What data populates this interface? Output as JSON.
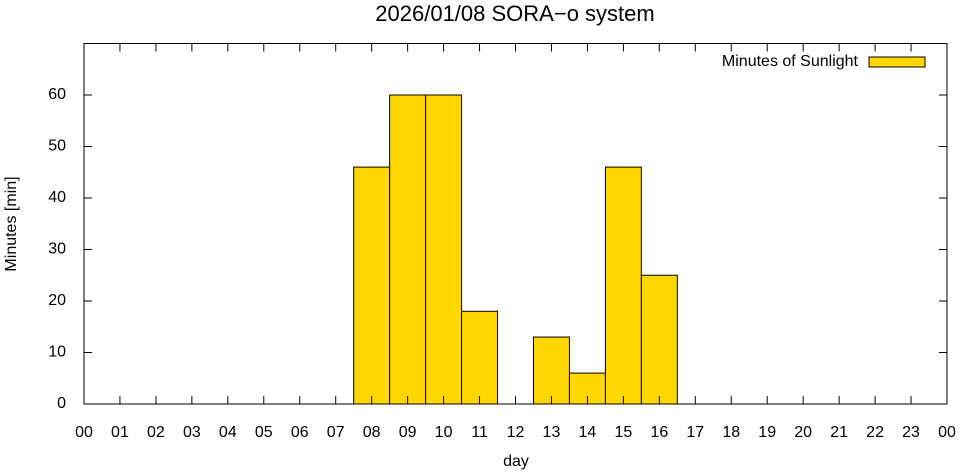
{
  "chart_data": {
    "type": "bar",
    "title": "2026/01/08 SORA−o system",
    "xlabel": "day",
    "ylabel": "Minutes [min]",
    "series": [
      {
        "name": "Minutes of Sunlight",
        "color": "#ffd700",
        "x": [
          8,
          9,
          10,
          11,
          13,
          14,
          15,
          16
        ],
        "values": [
          46,
          60,
          60,
          18,
          13,
          6,
          46,
          25
        ]
      }
    ],
    "bar_width": 1,
    "xlim": [
      0,
      24
    ],
    "xticks": [
      {
        "value": 0,
        "label": "00"
      },
      {
        "value": 1,
        "label": "01"
      },
      {
        "value": 2,
        "label": "02"
      },
      {
        "value": 3,
        "label": "03"
      },
      {
        "value": 4,
        "label": "04"
      },
      {
        "value": 5,
        "label": "05"
      },
      {
        "value": 6,
        "label": "06"
      },
      {
        "value": 7,
        "label": "07"
      },
      {
        "value": 8,
        "label": "08"
      },
      {
        "value": 9,
        "label": "09"
      },
      {
        "value": 10,
        "label": "10"
      },
      {
        "value": 11,
        "label": "11"
      },
      {
        "value": 12,
        "label": "12"
      },
      {
        "value": 13,
        "label": "13"
      },
      {
        "value": 14,
        "label": "14"
      },
      {
        "value": 15,
        "label": "15"
      },
      {
        "value": 16,
        "label": "16"
      },
      {
        "value": 17,
        "label": "17"
      },
      {
        "value": 18,
        "label": "18"
      },
      {
        "value": 19,
        "label": "19"
      },
      {
        "value": 20,
        "label": "20"
      },
      {
        "value": 21,
        "label": "21"
      },
      {
        "value": 22,
        "label": "22"
      },
      {
        "value": 23,
        "label": "23"
      },
      {
        "value": 24,
        "label": "00"
      }
    ],
    "ylim": [
      0,
      70
    ],
    "yticks": [
      0,
      10,
      20,
      30,
      40,
      50,
      60
    ],
    "legend": "top-right",
    "grid": false
  }
}
